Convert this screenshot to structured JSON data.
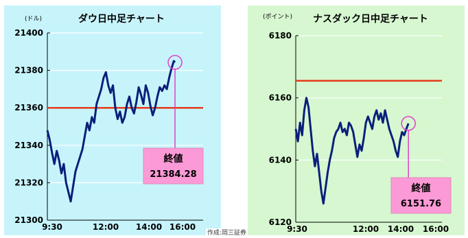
{
  "chart_data": [
    {
      "type": "line",
      "title": "ダウ日中足チャート",
      "unit": "(ドル)",
      "x_ticks": [
        "9:30",
        "12:00",
        "14:00",
        "16:00"
      ],
      "y_ticks": [
        "21300",
        "21320",
        "21340",
        "21360",
        "21380",
        "21400"
      ],
      "ylim": [
        21300,
        21400
      ],
      "reference_line": 21360,
      "series": [
        {
          "values": [
            [
              0,
              21348
            ],
            [
              4,
              21343
            ],
            [
              8,
              21336
            ],
            [
              12,
              21330
            ],
            [
              16,
              21337
            ],
            [
              20,
              21332
            ],
            [
              24,
              21325
            ],
            [
              28,
              21330
            ],
            [
              32,
              21320
            ],
            [
              36,
              21315
            ],
            [
              40,
              21310
            ],
            [
              44,
              21318
            ],
            [
              48,
              21326
            ],
            [
              52,
              21330
            ],
            [
              56,
              21334
            ],
            [
              60,
              21338
            ],
            [
              64,
              21345
            ],
            [
              68,
              21352
            ],
            [
              72,
              21348
            ],
            [
              76,
              21355
            ],
            [
              80,
              21352
            ],
            [
              84,
              21362
            ],
            [
              88,
              21366
            ],
            [
              92,
              21370
            ],
            [
              96,
              21376
            ],
            [
              100,
              21379
            ],
            [
              104,
              21372
            ],
            [
              108,
              21368
            ],
            [
              112,
              21372
            ],
            [
              116,
              21360
            ],
            [
              120,
              21354
            ],
            [
              124,
              21358
            ],
            [
              128,
              21352
            ],
            [
              132,
              21355
            ],
            [
              136,
              21362
            ],
            [
              140,
              21366
            ],
            [
              144,
              21360
            ],
            [
              148,
              21357
            ],
            [
              152,
              21363
            ],
            [
              156,
              21371
            ],
            [
              160,
              21367
            ],
            [
              164,
              21362
            ],
            [
              168,
              21372
            ],
            [
              172,
              21368
            ],
            [
              176,
              21361
            ],
            [
              180,
              21356
            ],
            [
              184,
              21360
            ],
            [
              188,
              21366
            ],
            [
              192,
              21371
            ],
            [
              196,
              21369
            ],
            [
              200,
              21372
            ],
            [
              204,
              21370
            ],
            [
              208,
              21376
            ],
            [
              212,
              21381
            ],
            [
              216,
              21385
            ],
            [
              218,
              21384.28
            ]
          ]
        }
      ],
      "end_label": "終値",
      "end_value": "21384.28",
      "line_color": "#0a1f7a",
      "reference_color": "#e63a1a",
      "background": "#c7f4fb"
    },
    {
      "type": "line",
      "title": "ナスダック日中足チャート",
      "unit": "(ポイント)",
      "x_ticks": [
        "9:30",
        "12:00",
        "14:00",
        "16:00"
      ],
      "y_ticks": [
        "6120",
        "6140",
        "6160",
        "6180"
      ],
      "ylim": [
        6120,
        6180
      ],
      "reference_line": 6165.5,
      "series": [
        {
          "values": [
            [
              0,
              6150
            ],
            [
              4,
              6146
            ],
            [
              8,
              6152
            ],
            [
              12,
              6148
            ],
            [
              16,
              6156
            ],
            [
              20,
              6160
            ],
            [
              24,
              6157
            ],
            [
              28,
              6150
            ],
            [
              32,
              6143
            ],
            [
              36,
              6138
            ],
            [
              40,
              6142
            ],
            [
              44,
              6136
            ],
            [
              48,
              6130
            ],
            [
              52,
              6126
            ],
            [
              56,
              6131
            ],
            [
              60,
              6136
            ],
            [
              64,
              6140
            ],
            [
              68,
              6143
            ],
            [
              72,
              6147
            ],
            [
              76,
              6149
            ],
            [
              80,
              6150
            ],
            [
              84,
              6152
            ],
            [
              88,
              6149
            ],
            [
              92,
              6150
            ],
            [
              96,
              6148
            ],
            [
              100,
              6152
            ],
            [
              104,
              6151
            ],
            [
              108,
              6149
            ],
            [
              112,
              6145
            ],
            [
              116,
              6141
            ],
            [
              120,
              6145
            ],
            [
              124,
              6143
            ],
            [
              128,
              6147
            ],
            [
              132,
              6152
            ],
            [
              136,
              6154
            ],
            [
              140,
              6152
            ],
            [
              144,
              6150
            ],
            [
              148,
              6154
            ],
            [
              152,
              6156
            ],
            [
              156,
              6153
            ],
            [
              160,
              6155
            ],
            [
              164,
              6152
            ],
            [
              168,
              6156
            ],
            [
              172,
              6153
            ],
            [
              176,
              6150
            ],
            [
              180,
              6148
            ],
            [
              184,
              6146
            ],
            [
              188,
              6143
            ],
            [
              192,
              6141
            ],
            [
              196,
              6146
            ],
            [
              200,
              6149
            ],
            [
              204,
              6148
            ],
            [
              208,
              6150
            ],
            [
              212,
              6151.76
            ]
          ]
        }
      ],
      "end_label": "終値",
      "end_value": "6151.76",
      "line_color": "#0a1f7a",
      "reference_color": "#e63a1a",
      "background": "#d6f7d0"
    }
  ],
  "credit": "作成:岡三証券"
}
